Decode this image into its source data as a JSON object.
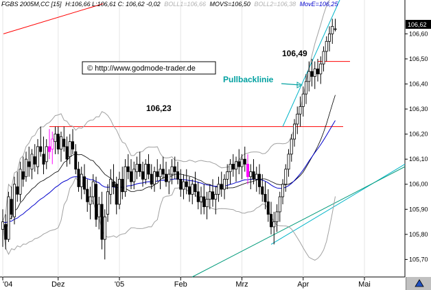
{
  "header": {
    "symbol": "FGBS 2005M,CC [15]",
    "ohlc": "H:106,66 L:106,61 C: 106,62 -0,02",
    "boll1": "BOLL1=106,66",
    "movs": "MOVS=106,50",
    "boll2": "BOLL2=106,38",
    "move": "MovE=106,25"
  },
  "copyright": "© http://www.godmode-trader.de",
  "colors": {
    "candle": "#000000",
    "candle_highlight": "#ff00ff",
    "bollinger": "#a0a0a0",
    "sma": "#000000",
    "ema": "#0000cc",
    "resistance": "#ff0000",
    "trend_cyan": "#00b4c8",
    "support_green": "#009a7a",
    "annotation_teal": "#00a0a0",
    "last_price_bg": "#000000"
  },
  "chart_data": {
    "type": "candlestick",
    "title": "",
    "xlabel": "",
    "ylabel": "",
    "ylim": [
      105.63,
      106.735
    ],
    "y_ticks": [
      "105,70",
      "105,80",
      "105,90",
      "106,00",
      "106,10",
      "106,20",
      "106,30",
      "106,40",
      "106,50",
      "106,60"
    ],
    "y_tick_values": [
      105.7,
      105.8,
      105.9,
      106.0,
      106.1,
      106.2,
      106.3,
      106.4,
      106.5,
      106.6
    ],
    "x_ticks": [
      "'04",
      "Dez",
      "'05",
      "Feb",
      "Mrz",
      "Apr",
      "Mai"
    ],
    "x_tick_index": [
      0,
      19,
      40,
      61,
      82,
      103,
      124
    ],
    "last_price": "106,62",
    "candles": [
      [
        105.82,
        105.9,
        105.75,
        105.85
      ],
      [
        105.84,
        105.88,
        105.74,
        105.78
      ],
      [
        105.78,
        105.97,
        105.77,
        105.95
      ],
      [
        105.94,
        105.99,
        105.86,
        105.88
      ],
      [
        105.87,
        106.03,
        105.84,
        106.0
      ],
      [
        105.99,
        106.05,
        105.93,
        105.96
      ],
      [
        105.96,
        106.09,
        105.93,
        106.06
      ],
      [
        106.05,
        106.11,
        105.99,
        106.02
      ],
      [
        106.03,
        106.13,
        106.01,
        106.1
      ],
      [
        106.09,
        106.15,
        106.03,
        106.07
      ],
      [
        106.06,
        106.14,
        106.02,
        106.12
      ],
      [
        106.11,
        106.16,
        106.05,
        106.08
      ],
      [
        106.07,
        106.18,
        106.04,
        106.15
      ],
      [
        106.15,
        106.23,
        106.11,
        106.13
      ],
      [
        106.12,
        106.19,
        106.04,
        106.08
      ],
      [
        106.09,
        106.18,
        106.06,
        106.15
      ],
      [
        106.15,
        106.22,
        106.1,
        106.13
      ],
      [
        106.14,
        106.21,
        106.08,
        106.18
      ],
      [
        106.17,
        106.23,
        106.12,
        106.2
      ],
      [
        106.2,
        106.23,
        106.12,
        106.14
      ],
      [
        106.14,
        106.21,
        106.09,
        106.19
      ],
      [
        106.18,
        106.23,
        106.13,
        106.15
      ],
      [
        106.15,
        106.19,
        106.07,
        106.1
      ],
      [
        106.11,
        106.2,
        106.08,
        106.17
      ],
      [
        106.17,
        106.22,
        106.12,
        106.14
      ],
      [
        106.13,
        106.16,
        106.04,
        106.06
      ],
      [
        106.06,
        106.09,
        105.97,
        105.99
      ],
      [
        105.99,
        106.07,
        105.94,
        106.04
      ],
      [
        106.03,
        106.08,
        105.96,
        105.98
      ],
      [
        105.98,
        106.02,
        105.89,
        105.93
      ],
      [
        105.92,
        105.99,
        105.86,
        105.95
      ],
      [
        105.95,
        106.04,
        105.92,
        106.01
      ],
      [
        106.0,
        106.03,
        105.83,
        105.86
      ],
      [
        105.87,
        105.95,
        105.82,
        105.92
      ],
      [
        105.92,
        105.97,
        105.74,
        105.78
      ],
      [
        105.78,
        105.9,
        105.7,
        105.87
      ],
      [
        105.88,
        106.0,
        105.85,
        105.97
      ],
      [
        105.96,
        106.06,
        105.92,
        106.02
      ],
      [
        106.01,
        106.08,
        105.96,
        105.99
      ],
      [
        106.0,
        106.03,
        105.88,
        105.92
      ],
      [
        105.92,
        106.05,
        105.9,
        106.02
      ],
      [
        106.02,
        106.07,
        105.94,
        105.97
      ],
      [
        105.97,
        106.1,
        105.95,
        106.07
      ],
      [
        106.07,
        106.12,
        106.02,
        106.05
      ],
      [
        106.05,
        106.1,
        105.98,
        106.01
      ],
      [
        106.01,
        106.09,
        105.98,
        106.06
      ],
      [
        106.05,
        106.11,
        106.02,
        106.08
      ],
      [
        106.08,
        106.13,
        106.03,
        106.05
      ],
      [
        106.05,
        106.09,
        105.99,
        106.02
      ],
      [
        106.02,
        106.1,
        106.0,
        106.08
      ],
      [
        106.08,
        106.12,
        106.02,
        106.04
      ],
      [
        106.04,
        106.08,
        105.98,
        106.0
      ],
      [
        106.0,
        106.07,
        105.97,
        106.05
      ],
      [
        106.05,
        106.1,
        106.01,
        106.03
      ],
      [
        106.03,
        106.08,
        105.98,
        106.06
      ],
      [
        106.06,
        106.11,
        106.02,
        106.04
      ],
      [
        106.04,
        106.09,
        105.99,
        106.01
      ],
      [
        106.01,
        106.06,
        105.96,
        106.04
      ],
      [
        106.04,
        106.1,
        106.0,
        106.07
      ],
      [
        106.07,
        106.11,
        106.02,
        106.05
      ],
      [
        106.05,
        106.09,
        106.0,
        106.02
      ],
      [
        106.02,
        106.06,
        105.95,
        105.98
      ],
      [
        105.98,
        106.04,
        105.94,
        106.01
      ],
      [
        106.01,
        106.06,
        105.96,
        105.99
      ],
      [
        105.99,
        106.03,
        105.93,
        105.96
      ],
      [
        105.96,
        106.02,
        105.92,
        106.0
      ],
      [
        106.0,
        106.05,
        105.95,
        105.97
      ],
      [
        105.97,
        106.01,
        105.9,
        105.93
      ],
      [
        105.93,
        105.99,
        105.88,
        105.95
      ],
      [
        105.95,
        106.0,
        105.88,
        105.91
      ],
      [
        105.91,
        105.97,
        105.86,
        105.94
      ],
      [
        105.94,
        106.0,
        105.9,
        105.97
      ],
      [
        105.97,
        106.02,
        105.91,
        105.94
      ],
      [
        105.94,
        105.99,
        105.88,
        105.96
      ],
      [
        105.96,
        106.03,
        105.93,
        106.0
      ],
      [
        106.0,
        106.05,
        105.95,
        105.98
      ],
      [
        105.98,
        106.04,
        105.94,
        106.02
      ],
      [
        106.02,
        106.08,
        105.98,
        106.05
      ],
      [
        106.05,
        106.1,
        106.0,
        106.08
      ],
      [
        106.08,
        106.12,
        106.03,
        106.06
      ],
      [
        106.06,
        106.11,
        106.01,
        106.09
      ],
      [
        106.09,
        106.14,
        106.04,
        106.07
      ],
      [
        106.07,
        106.12,
        106.02,
        106.1
      ],
      [
        106.1,
        106.15,
        106.05,
        106.08
      ],
      [
        106.08,
        106.12,
        106.0,
        106.03
      ],
      [
        106.03,
        106.08,
        105.98,
        106.05
      ],
      [
        106.05,
        106.1,
        106.0,
        106.02
      ],
      [
        106.02,
        106.07,
        105.97,
        106.04
      ],
      [
        106.04,
        106.08,
        105.96,
        105.99
      ],
      [
        105.99,
        106.04,
        105.93,
        105.96
      ],
      [
        105.96,
        106.01,
        105.9,
        105.93
      ],
      [
        105.93,
        105.98,
        105.85,
        105.88
      ],
      [
        105.88,
        105.93,
        105.8,
        105.83
      ],
      [
        105.83,
        105.89,
        105.76,
        105.85
      ],
      [
        105.85,
        105.92,
        105.81,
        105.89
      ],
      [
        105.89,
        105.97,
        105.85,
        105.95
      ],
      [
        105.95,
        106.02,
        105.92,
        106.0
      ],
      [
        106.0,
        106.08,
        105.97,
        106.06
      ],
      [
        106.06,
        106.14,
        106.03,
        106.12
      ],
      [
        106.12,
        106.2,
        106.09,
        106.18
      ],
      [
        106.18,
        106.26,
        106.15,
        106.24
      ],
      [
        106.24,
        106.31,
        106.2,
        106.28
      ],
      [
        106.28,
        106.35,
        106.23,
        106.31
      ],
      [
        106.31,
        106.39,
        106.27,
        106.36
      ],
      [
        106.36,
        106.44,
        106.32,
        106.41
      ],
      [
        106.41,
        106.49,
        106.37,
        106.45
      ],
      [
        106.45,
        106.5,
        106.39,
        106.43
      ],
      [
        106.43,
        106.49,
        106.38,
        106.46
      ],
      [
        106.46,
        106.5,
        106.41,
        106.44
      ],
      [
        106.44,
        106.51,
        106.4,
        106.48
      ],
      [
        106.48,
        106.55,
        106.45,
        106.53
      ],
      [
        106.53,
        106.59,
        106.49,
        106.57
      ],
      [
        106.57,
        106.63,
        106.53,
        106.6
      ],
      [
        106.6,
        106.66,
        106.56,
        106.63
      ],
      [
        106.62,
        106.66,
        106.61,
        106.62
      ]
    ],
    "series": [
      {
        "name": "BOLL1",
        "values": []
      },
      {
        "name": "MOVS",
        "values": []
      },
      {
        "name": "BOLL2",
        "values": []
      },
      {
        "name": "MovE",
        "values": []
      }
    ],
    "annotations": [
      {
        "text": "106,23",
        "kind": "horizontal-level",
        "value": 106.23
      },
      {
        "text": "106,49",
        "kind": "horizontal-level",
        "value": 106.49
      },
      {
        "text": "Pullbacklinie",
        "kind": "trendline-label"
      }
    ]
  }
}
